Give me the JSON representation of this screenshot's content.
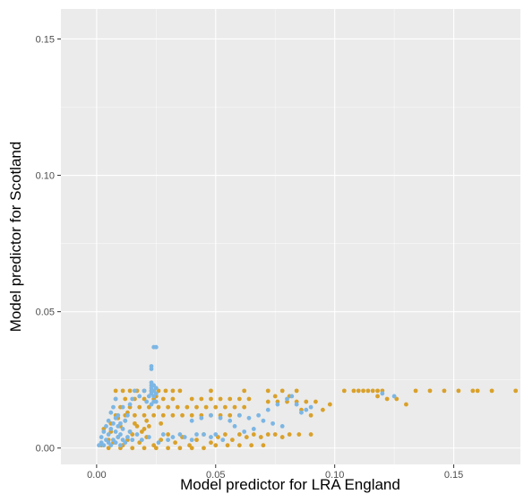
{
  "chart_data": {
    "type": "scatter",
    "title": "",
    "xlabel": "Model predictor for LRA England",
    "ylabel": "Model predictor for Scotland",
    "xlim": [
      -0.015,
      0.178
    ],
    "ylim": [
      -0.006,
      0.161
    ],
    "x_ticks": [
      {
        "value": 0.0,
        "label": "0.00"
      },
      {
        "value": 0.05,
        "label": "0.05"
      },
      {
        "value": 0.1,
        "label": "0.10"
      },
      {
        "value": 0.15,
        "label": "0.15"
      }
    ],
    "y_ticks": [
      {
        "value": 0.0,
        "label": "0.00"
      },
      {
        "value": 0.05,
        "label": "0.05"
      },
      {
        "value": 0.1,
        "label": "0.10"
      },
      {
        "value": 0.15,
        "label": "0.15"
      }
    ],
    "grid": true,
    "legend": "none",
    "colors": {
      "background": "#ebebeb",
      "grid": "#ffffff",
      "series_1": "#d9a12b",
      "series_2": "#7cb6e4"
    },
    "series": [
      {
        "color": "#d9a12b",
        "points": [
          [
            0.002,
            0.001
          ],
          [
            0.005,
            0.003
          ],
          [
            0.007,
            0.002
          ],
          [
            0.009,
            0.004
          ],
          [
            0.011,
            0.001
          ],
          [
            0.013,
            0.003
          ],
          [
            0.015,
            0.005
          ],
          [
            0.018,
            0.002
          ],
          [
            0.021,
            0.004
          ],
          [
            0.024,
            0.001
          ],
          [
            0.027,
            0.003
          ],
          [
            0.03,
            0.005
          ],
          [
            0.033,
            0.002
          ],
          [
            0.036,
            0.004
          ],
          [
            0.039,
            0.001
          ],
          [
            0.042,
            0.003
          ],
          [
            0.045,
            0.005
          ],
          [
            0.048,
            0.002
          ],
          [
            0.051,
            0.004
          ],
          [
            0.054,
            0.005
          ],
          [
            0.057,
            0.003
          ],
          [
            0.06,
            0.005
          ],
          [
            0.063,
            0.004
          ],
          [
            0.066,
            0.005
          ],
          [
            0.069,
            0.004
          ],
          [
            0.072,
            0.005
          ],
          [
            0.075,
            0.005
          ],
          [
            0.078,
            0.004
          ],
          [
            0.081,
            0.005
          ],
          [
            0.085,
            0.005
          ],
          [
            0.09,
            0.005
          ],
          [
            0.003,
            0.007
          ],
          [
            0.006,
            0.006
          ],
          [
            0.01,
            0.008
          ],
          [
            0.014,
            0.006
          ],
          [
            0.017,
            0.008
          ],
          [
            0.02,
            0.007
          ],
          [
            0.012,
            0.01
          ],
          [
            0.016,
            0.009
          ],
          [
            0.022,
            0.008
          ],
          [
            0.008,
            0.012
          ],
          [
            0.012,
            0.012
          ],
          [
            0.016,
            0.012
          ],
          [
            0.02,
            0.012
          ],
          [
            0.024,
            0.012
          ],
          [
            0.028,
            0.012
          ],
          [
            0.032,
            0.012
          ],
          [
            0.036,
            0.012
          ],
          [
            0.04,
            0.012
          ],
          [
            0.044,
            0.012
          ],
          [
            0.048,
            0.012
          ],
          [
            0.052,
            0.012
          ],
          [
            0.056,
            0.012
          ],
          [
            0.06,
            0.012
          ],
          [
            0.01,
            0.015
          ],
          [
            0.014,
            0.015
          ],
          [
            0.018,
            0.015
          ],
          [
            0.022,
            0.015
          ],
          [
            0.026,
            0.015
          ],
          [
            0.03,
            0.015
          ],
          [
            0.034,
            0.015
          ],
          [
            0.038,
            0.015
          ],
          [
            0.042,
            0.015
          ],
          [
            0.046,
            0.015
          ],
          [
            0.05,
            0.015
          ],
          [
            0.054,
            0.015
          ],
          [
            0.058,
            0.015
          ],
          [
            0.062,
            0.015
          ],
          [
            0.008,
            0.018
          ],
          [
            0.012,
            0.018
          ],
          [
            0.016,
            0.018
          ],
          [
            0.02,
            0.018
          ],
          [
            0.024,
            0.018
          ],
          [
            0.028,
            0.018
          ],
          [
            0.032,
            0.018
          ],
          [
            0.008,
            0.021
          ],
          [
            0.011,
            0.021
          ],
          [
            0.014,
            0.021
          ],
          [
            0.017,
            0.021
          ],
          [
            0.02,
            0.021
          ],
          [
            0.023,
            0.021
          ],
          [
            0.026,
            0.021
          ],
          [
            0.029,
            0.021
          ],
          [
            0.032,
            0.021
          ],
          [
            0.035,
            0.021
          ],
          [
            0.025,
            0.019
          ],
          [
            0.04,
            0.018
          ],
          [
            0.044,
            0.018
          ],
          [
            0.048,
            0.018
          ],
          [
            0.052,
            0.018
          ],
          [
            0.056,
            0.018
          ],
          [
            0.06,
            0.018
          ],
          [
            0.064,
            0.018
          ],
          [
            0.048,
            0.021
          ],
          [
            0.062,
            0.021
          ],
          [
            0.072,
            0.021
          ],
          [
            0.078,
            0.021
          ],
          [
            0.084,
            0.021
          ],
          [
            0.072,
            0.017
          ],
          [
            0.076,
            0.017
          ],
          [
            0.08,
            0.017
          ],
          [
            0.084,
            0.017
          ],
          [
            0.088,
            0.017
          ],
          [
            0.075,
            0.019
          ],
          [
            0.081,
            0.019
          ],
          [
            0.086,
            0.014
          ],
          [
            0.09,
            0.012
          ],
          [
            0.095,
            0.014
          ],
          [
            0.092,
            0.017
          ],
          [
            0.098,
            0.016
          ],
          [
            0.104,
            0.021
          ],
          [
            0.108,
            0.021
          ],
          [
            0.11,
            0.021
          ],
          [
            0.112,
            0.021
          ],
          [
            0.114,
            0.021
          ],
          [
            0.116,
            0.021
          ],
          [
            0.118,
            0.021
          ],
          [
            0.12,
            0.021
          ],
          [
            0.118,
            0.019
          ],
          [
            0.122,
            0.018
          ],
          [
            0.126,
            0.018
          ],
          [
            0.13,
            0.016
          ],
          [
            0.134,
            0.021
          ],
          [
            0.14,
            0.021
          ],
          [
            0.146,
            0.021
          ],
          [
            0.152,
            0.021
          ],
          [
            0.158,
            0.021
          ],
          [
            0.16,
            0.021
          ],
          [
            0.166,
            0.021
          ],
          [
            0.176,
            0.021
          ],
          [
            0.005,
            0.0
          ],
          [
            0.01,
            0.0
          ],
          [
            0.015,
            0.0
          ],
          [
            0.02,
            0.0
          ],
          [
            0.025,
            0.0
          ],
          [
            0.03,
            0.0
          ],
          [
            0.035,
            0.0
          ],
          [
            0.04,
            0.0
          ],
          [
            0.045,
            0.0
          ],
          [
            0.05,
            0.001
          ],
          [
            0.055,
            0.001
          ],
          [
            0.06,
            0.001
          ],
          [
            0.065,
            0.001
          ],
          [
            0.07,
            0.001
          ],
          [
            0.006,
            0.009
          ],
          [
            0.009,
            0.011
          ],
          [
            0.013,
            0.013
          ],
          [
            0.019,
            0.006
          ],
          [
            0.021,
            0.01
          ],
          [
            0.027,
            0.009
          ]
        ]
      },
      {
        "color": "#7cb6e4",
        "points": [
          [
            0.001,
            0.001
          ],
          [
            0.002,
            0.002
          ],
          [
            0.002,
            0.004
          ],
          [
            0.003,
            0.006
          ],
          [
            0.003,
            0.001
          ],
          [
            0.004,
            0.003
          ],
          [
            0.004,
            0.008
          ],
          [
            0.005,
            0.002
          ],
          [
            0.005,
            0.005
          ],
          [
            0.005,
            0.01
          ],
          [
            0.006,
            0.001
          ],
          [
            0.006,
            0.007
          ],
          [
            0.006,
            0.013
          ],
          [
            0.007,
            0.003
          ],
          [
            0.007,
            0.009
          ],
          [
            0.007,
            0.015
          ],
          [
            0.008,
            0.002
          ],
          [
            0.008,
            0.006
          ],
          [
            0.008,
            0.011
          ],
          [
            0.008,
            0.018
          ],
          [
            0.009,
            0.004
          ],
          [
            0.009,
            0.008
          ],
          [
            0.009,
            0.012
          ],
          [
            0.01,
            0.001
          ],
          [
            0.01,
            0.005
          ],
          [
            0.01,
            0.009
          ],
          [
            0.011,
            0.003
          ],
          [
            0.011,
            0.007
          ],
          [
            0.011,
            0.015
          ],
          [
            0.012,
            0.002
          ],
          [
            0.012,
            0.01
          ],
          [
            0.013,
            0.004
          ],
          [
            0.013,
            0.012
          ],
          [
            0.014,
            0.006
          ],
          [
            0.014,
            0.016
          ],
          [
            0.015,
            0.003
          ],
          [
            0.015,
            0.018
          ],
          [
            0.016,
            0.021
          ],
          [
            0.017,
            0.005
          ],
          [
            0.018,
            0.019
          ],
          [
            0.019,
            0.003
          ],
          [
            0.02,
            0.021
          ],
          [
            0.021,
            0.017
          ],
          [
            0.022,
            0.004
          ],
          [
            0.022,
            0.019
          ],
          [
            0.023,
            0.016
          ],
          [
            0.023,
            0.02
          ],
          [
            0.023,
            0.021
          ],
          [
            0.023,
            0.022
          ],
          [
            0.023,
            0.023
          ],
          [
            0.023,
            0.024
          ],
          [
            0.024,
            0.017
          ],
          [
            0.024,
            0.019
          ],
          [
            0.024,
            0.021
          ],
          [
            0.024,
            0.023
          ],
          [
            0.025,
            0.017
          ],
          [
            0.025,
            0.02
          ],
          [
            0.025,
            0.022
          ],
          [
            0.023,
            0.029
          ],
          [
            0.023,
            0.03
          ],
          [
            0.024,
            0.037
          ],
          [
            0.025,
            0.037
          ],
          [
            0.026,
            0.002
          ],
          [
            0.028,
            0.005
          ],
          [
            0.03,
            0.003
          ],
          [
            0.032,
            0.004
          ],
          [
            0.035,
            0.005
          ],
          [
            0.037,
            0.004
          ],
          [
            0.04,
            0.003
          ],
          [
            0.042,
            0.005
          ],
          [
            0.045,
            0.005
          ],
          [
            0.048,
            0.004
          ],
          [
            0.05,
            0.005
          ],
          [
            0.053,
            0.003
          ],
          [
            0.04,
            0.01
          ],
          [
            0.044,
            0.011
          ],
          [
            0.048,
            0.012
          ],
          [
            0.052,
            0.011
          ],
          [
            0.056,
            0.01
          ],
          [
            0.06,
            0.012
          ],
          [
            0.064,
            0.011
          ],
          [
            0.068,
            0.012
          ],
          [
            0.072,
            0.014
          ],
          [
            0.076,
            0.016
          ],
          [
            0.08,
            0.018
          ],
          [
            0.082,
            0.019
          ],
          [
            0.084,
            0.016
          ],
          [
            0.086,
            0.013
          ],
          [
            0.088,
            0.014
          ],
          [
            0.09,
            0.015
          ],
          [
            0.058,
            0.008
          ],
          [
            0.062,
            0.006
          ],
          [
            0.066,
            0.007
          ],
          [
            0.07,
            0.01
          ],
          [
            0.074,
            0.009
          ],
          [
            0.078,
            0.008
          ],
          [
            0.12,
            0.02
          ],
          [
            0.125,
            0.019
          ]
        ]
      }
    ]
  }
}
